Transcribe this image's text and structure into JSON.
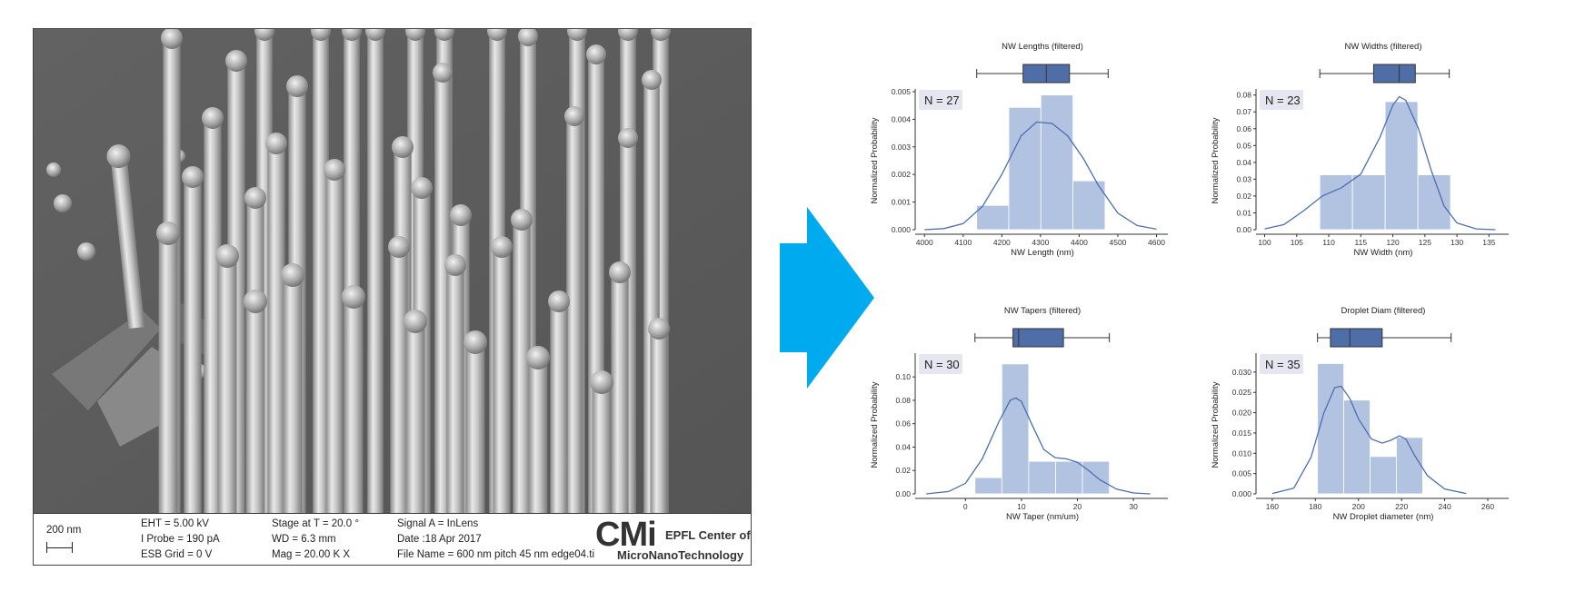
{
  "sem": {
    "scale_label": "200 nm",
    "eht": "EHT =  5.00 kV",
    "iprobe": "I Probe =    190 pA",
    "esb": "ESB Grid =      0 V",
    "stage": "Stage at T =  20.0 °",
    "wd": "WD =  6.3 mm",
    "mag": "Mag =   20.00 K X",
    "signal": "Signal A = InLens",
    "date": "Date :18 Apr 2017",
    "filename": "File Name = 600 nm pitch 45 nm edge04.ti",
    "logo_big": "CMi",
    "logo_line1": "EPFL Center of",
    "logo_line2": "MicroNanoTechnology"
  },
  "colors": {
    "hist_fill": "#b2c3e2",
    "box_fill": "#4f6ea8",
    "kde_line": "#4a6fb0",
    "arrow": "#00aaee",
    "n_badge": "#e6e6f0"
  },
  "chart_data": [
    {
      "type": "bar",
      "title": "NW Lengths (filtered)",
      "xlabel": "NW Length (nm)",
      "ylabel": "Normalized Probability",
      "n_label": "N = 27",
      "xlim": [
        3990,
        4620
      ],
      "ylim": [
        0,
        0.005
      ],
      "xticks": [
        4000,
        4100,
        4200,
        4300,
        4400,
        4500,
        4600
      ],
      "yticks": [
        0.0,
        0.001,
        0.002,
        0.003,
        0.004,
        0.005
      ],
      "ytick_labels": [
        "0.000",
        "0.001",
        "0.002",
        "0.003",
        "0.004",
        "0.005"
      ],
      "bins": [
        [
          4135,
          4218,
          0.00088
        ],
        [
          4218,
          4301,
          0.00443
        ],
        [
          4301,
          4384,
          0.00488
        ],
        [
          4384,
          4467,
          0.00177
        ]
      ],
      "kde": [
        [
          4000,
          0.0
        ],
        [
          4050,
          4e-05
        ],
        [
          4100,
          0.00022
        ],
        [
          4150,
          0.00085
        ],
        [
          4200,
          0.002
        ],
        [
          4250,
          0.0034
        ],
        [
          4290,
          0.0039
        ],
        [
          4330,
          0.00385
        ],
        [
          4370,
          0.0034
        ],
        [
          4410,
          0.0026
        ],
        [
          4450,
          0.0016
        ],
        [
          4500,
          0.0006
        ],
        [
          4550,
          0.00015
        ],
        [
          4600,
          2e-05
        ]
      ],
      "box": {
        "whislo": 4135,
        "q1": 4255,
        "median": 4315,
        "q3": 4375,
        "whishi": 4475
      }
    },
    {
      "type": "bar",
      "title": "NW Widths (filtered)",
      "xlabel": "NW Width (nm)",
      "ylabel": "Normalized Probability",
      "n_label": "N = 23",
      "xlim": [
        99.5,
        137.5
      ],
      "ylim": [
        0,
        0.082
      ],
      "xticks": [
        100,
        105,
        110,
        115,
        120,
        125,
        130,
        135
      ],
      "yticks": [
        0.0,
        0.01,
        0.02,
        0.03,
        0.04,
        0.05,
        0.06,
        0.07,
        0.08
      ],
      "ytick_labels": [
        "0.00",
        "0.01",
        "0.02",
        "0.03",
        "0.04",
        "0.05",
        "0.06",
        "0.07",
        "0.08"
      ],
      "bins": [
        [
          108.6,
          113.7,
          0.0326
        ],
        [
          113.7,
          118.8,
          0.0326
        ],
        [
          118.8,
          123.9,
          0.0761
        ],
        [
          123.9,
          129.0,
          0.0326
        ]
      ],
      "kde": [
        [
          100,
          0.0005
        ],
        [
          103,
          0.003
        ],
        [
          106,
          0.011
        ],
        [
          109,
          0.02
        ],
        [
          112,
          0.025
        ],
        [
          115,
          0.033
        ],
        [
          118,
          0.055
        ],
        [
          120,
          0.074
        ],
        [
          121,
          0.079
        ],
        [
          122,
          0.077
        ],
        [
          124,
          0.06
        ],
        [
          126,
          0.035
        ],
        [
          128,
          0.014
        ],
        [
          130,
          0.004
        ],
        [
          133,
          0.0005
        ],
        [
          136,
          0.0
        ]
      ],
      "box": {
        "whislo": 108.6,
        "q1": 117,
        "median": 121,
        "q3": 123.5,
        "whishi": 128.8
      }
    },
    {
      "type": "bar",
      "title": "NW Tapers (filtered)",
      "xlabel": "NW Taper (nm/um)",
      "ylabel": "Normalized Probability",
      "n_label": "N = 30",
      "xlim": [
        -8,
        35.5
      ],
      "ylim": [
        0,
        0.118
      ],
      "xticks": [
        0,
        10,
        20,
        30
      ],
      "yticks": [
        0.0,
        0.02,
        0.04,
        0.06,
        0.08,
        0.1
      ],
      "ytick_labels": [
        "0.00",
        "0.02",
        "0.04",
        "0.06",
        "0.08",
        "0.10"
      ],
      "bins": [
        [
          1.7,
          6.5,
          0.0139
        ],
        [
          6.5,
          11.3,
          0.1111
        ],
        [
          11.3,
          16.1,
          0.0278
        ],
        [
          16.1,
          20.9,
          0.0278
        ],
        [
          20.9,
          25.7,
          0.0278
        ]
      ],
      "kde": [
        [
          -7,
          0.0
        ],
        [
          -3,
          0.002
        ],
        [
          0,
          0.009
        ],
        [
          3,
          0.03
        ],
        [
          6,
          0.062
        ],
        [
          8,
          0.08
        ],
        [
          9,
          0.082
        ],
        [
          10,
          0.079
        ],
        [
          12,
          0.058
        ],
        [
          14,
          0.038
        ],
        [
          16,
          0.031
        ],
        [
          18,
          0.03
        ],
        [
          20,
          0.027
        ],
        [
          22,
          0.02
        ],
        [
          24,
          0.012
        ],
        [
          27,
          0.004
        ],
        [
          30,
          0.0008
        ],
        [
          33,
          0.0
        ]
      ],
      "box": {
        "whislo": 1.7,
        "q1": 8.5,
        "median": 9.5,
        "q3": 17.5,
        "whishi": 25.7
      }
    },
    {
      "type": "bar",
      "title": "Droplet Diam (filtered)",
      "xlabel": "NW Droplet diameter (nm)",
      "ylabel": "Normalized Probability",
      "n_label": "N = 35",
      "xlim": [
        155,
        268
      ],
      "ylim": [
        0,
        0.034
      ],
      "xticks": [
        160,
        180,
        200,
        220,
        240,
        260
      ],
      "yticks": [
        0.0,
        0.005,
        0.01,
        0.015,
        0.02,
        0.025,
        0.03
      ],
      "ytick_labels": [
        "0.000",
        "0.005",
        "0.010",
        "0.015",
        "0.020",
        "0.025",
        "0.030"
      ],
      "bins": [
        [
          181,
          193.2,
          0.0321
        ],
        [
          193.2,
          205.4,
          0.0231
        ],
        [
          205.4,
          217.6,
          0.0092
        ],
        [
          217.6,
          229.8,
          0.0139
        ]
      ],
      "kde": [
        [
          160,
          0.0001
        ],
        [
          170,
          0.0014
        ],
        [
          178,
          0.009
        ],
        [
          184,
          0.02
        ],
        [
          189,
          0.0262
        ],
        [
          192,
          0.0265
        ],
        [
          196,
          0.0235
        ],
        [
          200,
          0.0185
        ],
        [
          206,
          0.0135
        ],
        [
          211,
          0.0125
        ],
        [
          215,
          0.0132
        ],
        [
          219,
          0.0143
        ],
        [
          222,
          0.0135
        ],
        [
          226,
          0.0095
        ],
        [
          232,
          0.0045
        ],
        [
          240,
          0.0012
        ],
        [
          250,
          0.0001
        ]
      ],
      "box": {
        "whislo": 181,
        "q1": 187,
        "median": 196,
        "q3": 211,
        "whishi": 243
      }
    }
  ]
}
